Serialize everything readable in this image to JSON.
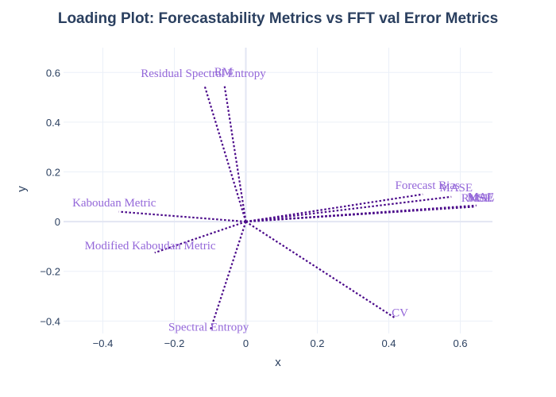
{
  "chart_data": {
    "type": "scatter",
    "title": "Loading Plot: Forecastability Metrics vs FFT val Error Metrics",
    "xlabel": "x",
    "ylabel": "y",
    "xlim": [
      -0.51,
      0.69
    ],
    "ylim": [
      -0.45,
      0.7
    ],
    "x_ticks": [
      -0.4,
      -0.2,
      0,
      0.2,
      0.4,
      0.6
    ],
    "x_tick_labels": [
      "−0.4",
      "−0.2",
      "0",
      "0.2",
      "0.4",
      "0.6"
    ],
    "y_ticks": [
      -0.4,
      -0.2,
      0,
      0.2,
      0.4,
      0.6
    ],
    "y_tick_labels": [
      "−0.4",
      "−0.2",
      "0",
      "0.2",
      "0.4",
      "0.6"
    ],
    "grid": true,
    "legend": "none",
    "line_color": "#4b0a8a",
    "label_color": "#9467d9",
    "vectors": [
      {
        "label": "Residual Spectral Entropy",
        "x": -0.115,
        "y": 0.545
      },
      {
        "label": "RM",
        "x": -0.06,
        "y": 0.55
      },
      {
        "label": "Kaboudan Metric",
        "x": -0.355,
        "y": 0.04
      },
      {
        "label": "Modified Kaboudan Metric",
        "x": -0.255,
        "y": -0.125
      },
      {
        "label": "Spectral Entropy",
        "x": -0.1,
        "y": -0.44
      },
      {
        "label": "CV",
        "x": 0.42,
        "y": -0.39
      },
      {
        "label": "Forecast Bias",
        "x": 0.495,
        "y": 0.11
      },
      {
        "label": "MASE",
        "x": 0.575,
        "y": 0.1
      },
      {
        "label": "MAE",
        "x": 0.645,
        "y": 0.065
      },
      {
        "label": "MSE",
        "x": 0.64,
        "y": 0.06
      },
      {
        "label": "RMSE",
        "x": 0.635,
        "y": 0.06
      }
    ]
  }
}
